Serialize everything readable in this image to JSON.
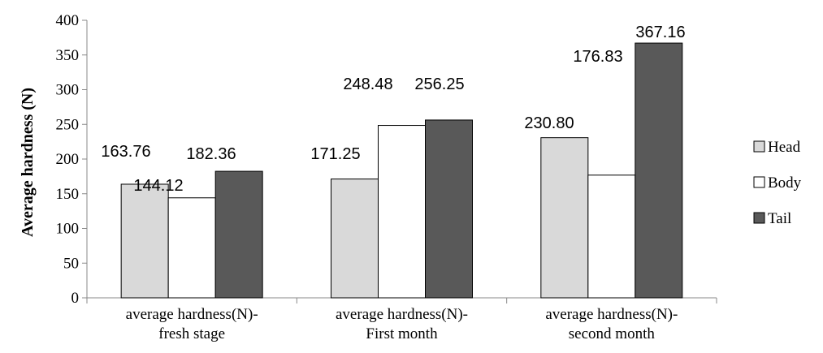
{
  "chart_data": {
    "type": "bar",
    "ylabel": "Average hardness (N)",
    "ylim": [
      0,
      400
    ],
    "yticks": [
      0,
      50,
      100,
      150,
      200,
      250,
      300,
      350,
      400
    ],
    "grid": false,
    "legend_position": "right",
    "categories": [
      [
        "average hardness(N)-",
        "fresh stage"
      ],
      [
        "average hardness(N)-",
        "First month"
      ],
      [
        "average hardness(N)-",
        "second month"
      ]
    ],
    "series": [
      {
        "name": "Head",
        "color": "#d9d9d9",
        "values": [
          163.76,
          171.25,
          230.8
        ],
        "labels": [
          "163.76",
          "171.25",
          "230.80"
        ]
      },
      {
        "name": "Body",
        "color": "#ffffff",
        "values": [
          144.12,
          248.48,
          176.83
        ],
        "labels": [
          "144.12",
          "248.48",
          "176.83"
        ]
      },
      {
        "name": "Tail",
        "color": "#595959",
        "values": [
          182.36,
          256.25,
          367.16
        ],
        "labels": [
          "182.36",
          "256.25",
          "367.16"
        ]
      }
    ]
  }
}
